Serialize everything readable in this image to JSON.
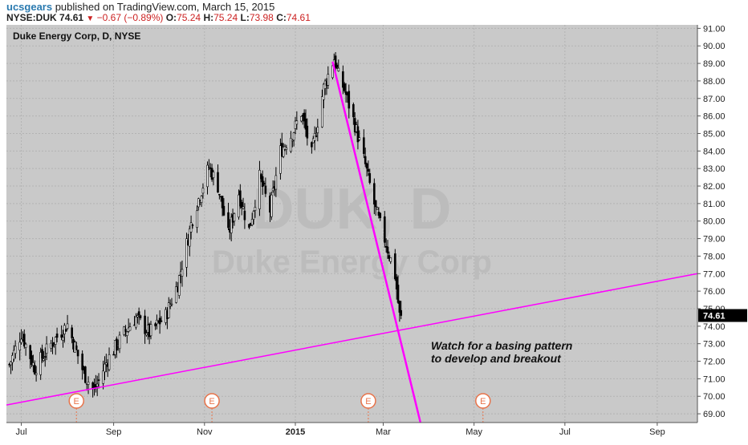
{
  "header": {
    "username": "ucsgears",
    "published_text": " published on TradingView.com, March 15, 2015",
    "symbol": "NYSE:DUK",
    "last": "74.61",
    "change": "−0.67 (−0.89%)",
    "open_label": "O:",
    "open": "75.24",
    "high_label": "H:",
    "high": "75.24",
    "low_label": "L:",
    "low": "73.98",
    "close_label": "C:",
    "close": "74.61"
  },
  "chart_title": "Duke Energy Corp, D, NYSE",
  "watermark": {
    "symbol": "DUK, D",
    "name": "Duke Energy Corp"
  },
  "annotation": [
    "Watch for a basing pattern",
    "to develop and breakout"
  ],
  "colors": {
    "plot_bg": "#c9c9c9",
    "trendline": "#ff00ff",
    "candles": "#000000",
    "price_tag_bg": "#000000",
    "earnings_marker": "#e8734a"
  },
  "chart_data": {
    "type": "candlestick",
    "title": "Duke Energy Corp, D, NYSE",
    "y_axis": {
      "min": 68.5,
      "max": 91.2,
      "position": "right",
      "ticks": [
        "69.00",
        "70.00",
        "71.00",
        "72.00",
        "73.00",
        "74.00",
        "75.00",
        "76.00",
        "77.00",
        "78.00",
        "79.00",
        "80.00",
        "81.00",
        "82.00",
        "83.00",
        "84.00",
        "85.00",
        "86.00",
        "87.00",
        "88.00",
        "89.00",
        "90.00",
        "91.00"
      ]
    },
    "x_axis": {
      "range": [
        "2014-06-21",
        "2015-09-28"
      ],
      "ticks": [
        {
          "label": "Jul",
          "date": "2014-07-01"
        },
        {
          "label": "Sep",
          "date": "2014-09-01"
        },
        {
          "label": "Nov",
          "date": "2014-11-01"
        },
        {
          "label": "2015",
          "date": "2015-01-01",
          "bold": true
        },
        {
          "label": "Mar",
          "date": "2015-03-01"
        },
        {
          "label": "May",
          "date": "2015-05-01"
        },
        {
          "label": "Jul",
          "date": "2015-07-01"
        },
        {
          "label": "Sep",
          "date": "2015-09-01"
        }
      ]
    },
    "price_path": [
      {
        "date": "2014-06-23",
        "close": 71.8
      },
      {
        "date": "2014-07-01",
        "close": 73.6
      },
      {
        "date": "2014-07-10",
        "close": 71.6
      },
      {
        "date": "2014-07-22",
        "close": 73.1
      },
      {
        "date": "2014-08-01",
        "close": 74.1
      },
      {
        "date": "2014-08-12",
        "close": 71.3
      },
      {
        "date": "2014-08-19",
        "close": 70.3
      },
      {
        "date": "2014-08-28",
        "close": 72.1
      },
      {
        "date": "2014-09-08",
        "close": 73.6
      },
      {
        "date": "2014-09-16",
        "close": 74.5
      },
      {
        "date": "2014-09-25",
        "close": 73.6
      },
      {
        "date": "2014-10-06",
        "close": 74.6
      },
      {
        "date": "2014-10-14",
        "close": 76.4
      },
      {
        "date": "2014-10-24",
        "close": 80.2
      },
      {
        "date": "2014-11-04",
        "close": 83.1
      },
      {
        "date": "2014-11-10",
        "close": 82.0
      },
      {
        "date": "2014-11-17",
        "close": 79.2
      },
      {
        "date": "2014-11-24",
        "close": 81.6
      },
      {
        "date": "2014-12-01",
        "close": 79.5
      },
      {
        "date": "2014-12-08",
        "close": 82.5
      },
      {
        "date": "2014-12-15",
        "close": 80.6
      },
      {
        "date": "2014-12-22",
        "close": 84.0
      },
      {
        "date": "2014-12-30",
        "close": 85.0
      },
      {
        "date": "2015-01-05",
        "close": 86.2
      },
      {
        "date": "2015-01-12",
        "close": 83.8
      },
      {
        "date": "2015-01-20",
        "close": 87.6
      },
      {
        "date": "2015-01-27",
        "close": 89.3
      },
      {
        "date": "2015-01-30",
        "close": 88.3
      },
      {
        "date": "2015-02-03",
        "close": 87.5
      },
      {
        "date": "2015-02-10",
        "close": 85.5
      },
      {
        "date": "2015-02-17",
        "close": 83.2
      },
      {
        "date": "2015-02-24",
        "close": 80.6
      },
      {
        "date": "2015-03-03",
        "close": 78.7
      },
      {
        "date": "2015-03-09",
        "close": 76.9
      },
      {
        "date": "2015-03-12",
        "close": 74.6
      },
      {
        "date": "2015-03-13",
        "close": 74.61
      }
    ],
    "last_price_label": "74.61",
    "trendlines": [
      {
        "name": "support",
        "from": {
          "date": "2014-06-21",
          "price": 69.5
        },
        "to": {
          "date": "2015-09-28",
          "price": 77.0
        }
      },
      {
        "name": "downtrend",
        "from": {
          "date": "2015-01-26",
          "price": 89.1
        },
        "to": {
          "date": "2015-03-26",
          "price": 68.5
        }
      }
    ],
    "earnings_markers": [
      {
        "label": "E",
        "date": "2014-08-07"
      },
      {
        "label": "E",
        "date": "2014-11-06"
      },
      {
        "label": "E",
        "date": "2015-02-19"
      },
      {
        "label": "E",
        "date": "2015-05-07"
      }
    ],
    "grid": true,
    "legend": "none"
  }
}
